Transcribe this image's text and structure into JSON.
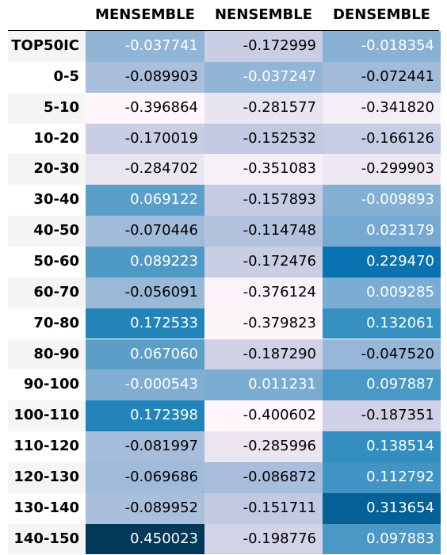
{
  "chart_data": {
    "type": "heatmap",
    "columns": [
      "MENSEMBLE",
      "NENSEMBLE",
      "DENSEMBLE"
    ],
    "rows": [
      "TOP50IC",
      "0-5",
      "5-10",
      "10-20",
      "20-30",
      "30-40",
      "40-50",
      "50-60",
      "60-70",
      "70-80",
      "80-90",
      "90-100",
      "100-110",
      "110-120",
      "120-130",
      "130-140",
      "140-150"
    ],
    "values": [
      [
        "-0.037741",
        "-0.172999",
        "-0.018354"
      ],
      [
        "-0.089903",
        "-0.037247",
        "-0.072441"
      ],
      [
        "-0.396864",
        "-0.281577",
        "-0.341820"
      ],
      [
        "-0.170019",
        "-0.152532",
        "-0.166126"
      ],
      [
        "-0.284702",
        "-0.351083",
        "-0.299903"
      ],
      [
        "0.069122",
        "-0.157893",
        "-0.009893"
      ],
      [
        "-0.070446",
        "-0.114748",
        "0.023179"
      ],
      [
        "0.089223",
        "-0.172476",
        "0.229470"
      ],
      [
        "-0.056091",
        "-0.376124",
        "0.009285"
      ],
      [
        "0.172533",
        "-0.379823",
        "0.132061"
      ],
      [
        "0.067060",
        "-0.187290",
        "-0.047520"
      ],
      [
        "-0.000543",
        "0.011231",
        "0.097887"
      ],
      [
        "0.172398",
        "-0.400602",
        "-0.187351"
      ],
      [
        "-0.081997",
        "-0.285996",
        "0.138514"
      ],
      [
        "-0.069686",
        "-0.086872",
        "0.112792"
      ],
      [
        "-0.089952",
        "-0.151711",
        "0.313654"
      ],
      [
        "0.450023",
        "-0.198776",
        "0.097883"
      ]
    ],
    "value_range": [
      -0.400602,
      0.450023
    ],
    "colormap": [
      "#fff7fb",
      "#ece7f2",
      "#d0d1e6",
      "#a6bddb",
      "#74a9cf",
      "#3690c0",
      "#0570b0",
      "#045a8d",
      "#023858"
    ],
    "text_colors": {
      "light_cells": "#000000",
      "dark_cells": "#ffffff"
    },
    "row_stripe_color": "#f5f5f5"
  }
}
